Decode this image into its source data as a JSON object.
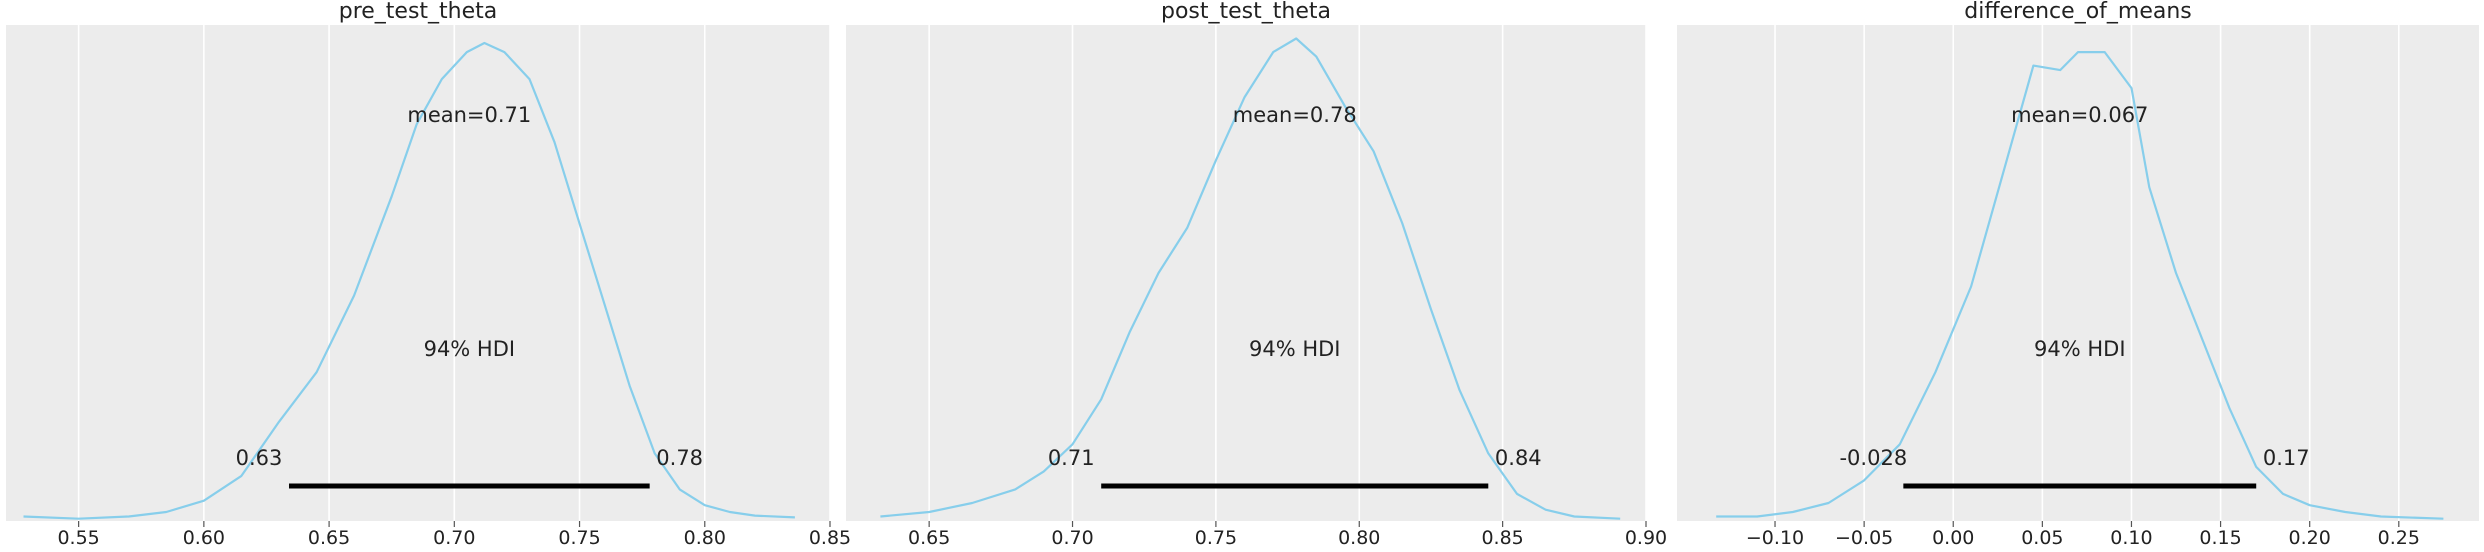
{
  "figure": {
    "background": "#ffffff",
    "panel_background": "#ececec",
    "grid_color": "#ffffff",
    "curve_color": "#87ceeb",
    "hdi_color": "#000000",
    "text_color": "#222222"
  },
  "chart_data": [
    {
      "type": "line",
      "title": "pre_test_theta",
      "xlim": [
        0.521,
        0.85
      ],
      "ylim": [
        0,
        1.1
      ],
      "xticks": [
        0.55,
        0.6,
        0.65,
        0.7,
        0.75,
        0.8,
        0.85
      ],
      "xtick_labels": [
        "0.55",
        "0.60",
        "0.65",
        "0.70",
        "0.75",
        "0.80",
        "0.85"
      ],
      "grid": true,
      "mean_label": "mean=0.71",
      "hdi_label": "94% HDI",
      "hdi": [
        0.634,
        0.778
      ],
      "hdi_low_label": "0.63",
      "hdi_high_label": "0.78",
      "density": {
        "x": [
          0.528,
          0.55,
          0.57,
          0.585,
          0.6,
          0.615,
          0.63,
          0.645,
          0.66,
          0.675,
          0.685,
          0.695,
          0.705,
          0.712,
          0.72,
          0.73,
          0.74,
          0.75,
          0.76,
          0.77,
          0.78,
          0.79,
          0.8,
          0.81,
          0.82,
          0.836
        ],
        "y": [
          0.01,
          0.005,
          0.01,
          0.02,
          0.045,
          0.1,
          0.22,
          0.33,
          0.5,
          0.72,
          0.88,
          0.98,
          1.04,
          1.06,
          1.04,
          0.98,
          0.84,
          0.66,
          0.48,
          0.3,
          0.15,
          0.07,
          0.035,
          0.02,
          0.012,
          0.008
        ]
      }
    },
    {
      "type": "line",
      "title": "post_test_theta",
      "xlim": [
        0.621,
        0.9
      ],
      "ylim": [
        0,
        1.1
      ],
      "xticks": [
        0.65,
        0.7,
        0.75,
        0.8,
        0.85,
        0.9
      ],
      "xtick_labels": [
        "0.65",
        "0.70",
        "0.75",
        "0.80",
        "0.85",
        "0.90"
      ],
      "grid": true,
      "mean_label": "mean=0.78",
      "hdi_label": "94% HDI",
      "hdi": [
        0.71,
        0.845
      ],
      "hdi_low_label": "0.71",
      "hdi_high_label": "0.84",
      "density": {
        "x": [
          0.633,
          0.65,
          0.665,
          0.68,
          0.69,
          0.7,
          0.71,
          0.72,
          0.73,
          0.74,
          0.75,
          0.76,
          0.77,
          0.778,
          0.785,
          0.795,
          0.805,
          0.815,
          0.825,
          0.835,
          0.845,
          0.855,
          0.865,
          0.875,
          0.891
        ],
        "y": [
          0.01,
          0.02,
          0.04,
          0.07,
          0.11,
          0.17,
          0.27,
          0.42,
          0.55,
          0.65,
          0.8,
          0.94,
          1.04,
          1.07,
          1.03,
          0.92,
          0.82,
          0.66,
          0.47,
          0.29,
          0.15,
          0.06,
          0.025,
          0.01,
          0.005
        ]
      }
    },
    {
      "type": "line",
      "title": "difference_of_means",
      "xlim": [
        -0.155,
        0.295
      ],
      "ylim": [
        0,
        1.1
      ],
      "xticks": [
        -0.1,
        -0.05,
        0.0,
        0.05,
        0.1,
        0.15,
        0.2,
        0.25
      ],
      "xtick_labels": [
        "−0.10",
        "−0.05",
        "0.00",
        "0.05",
        "0.10",
        "0.15",
        "0.20",
        "0.25"
      ],
      "grid": true,
      "mean_label": "mean=0.067",
      "hdi_label": "94% HDI",
      "hdi": [
        -0.028,
        0.17
      ],
      "hdi_low_label": "-0.028",
      "hdi_high_label": "0.17",
      "density": {
        "x": [
          -0.133,
          -0.11,
          -0.09,
          -0.07,
          -0.05,
          -0.03,
          -0.01,
          0.01,
          0.03,
          0.045,
          0.06,
          0.07,
          0.085,
          0.1,
          0.11,
          0.125,
          0.14,
          0.155,
          0.17,
          0.185,
          0.2,
          0.22,
          0.24,
          0.275
        ],
        "y": [
          0.01,
          0.01,
          0.02,
          0.04,
          0.09,
          0.17,
          0.33,
          0.52,
          0.8,
          1.01,
          1.0,
          1.04,
          1.04,
          0.96,
          0.74,
          0.55,
          0.4,
          0.25,
          0.12,
          0.06,
          0.035,
          0.02,
          0.01,
          0.005
        ]
      }
    }
  ]
}
